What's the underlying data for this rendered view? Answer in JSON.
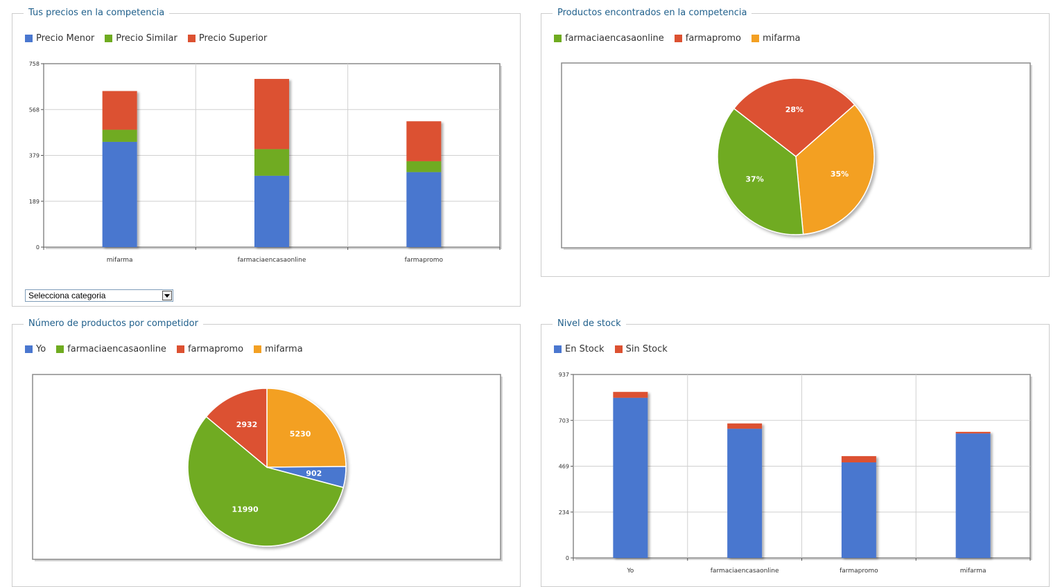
{
  "colors": {
    "blue": "#4a77cf",
    "green": "#6fab20",
    "red": "#dc5131",
    "orange": "#f3a023"
  },
  "panels": {
    "precios": {
      "title": "Tus precios en la competencia",
      "legend": [
        {
          "label": "Precio Menor",
          "color": "#4a77cf"
        },
        {
          "label": "Precio Similar",
          "color": "#6fab20"
        },
        {
          "label": "Precio Superior",
          "color": "#dc5131"
        }
      ],
      "select_value": "Selecciona categoria"
    },
    "encontrados": {
      "title": "Productos encontrados en la competencia",
      "legend": [
        {
          "label": "farmaciaencasaonline",
          "color": "#6fab20"
        },
        {
          "label": "farmapromo",
          "color": "#dc5131"
        },
        {
          "label": "mifarma",
          "color": "#f3a023"
        }
      ]
    },
    "numero": {
      "title": "Número de productos por competidor",
      "legend": [
        {
          "label": "Yo",
          "color": "#4a77cf"
        },
        {
          "label": "farmaciaencasaonline",
          "color": "#6fab20"
        },
        {
          "label": "farmapromo",
          "color": "#dc5131"
        },
        {
          "label": "mifarma",
          "color": "#f3a023"
        }
      ]
    },
    "stock": {
      "title": "Nivel de stock",
      "legend": [
        {
          "label": "En Stock",
          "color": "#4a77cf"
        },
        {
          "label": "Sin Stock",
          "color": "#dc5131"
        }
      ]
    }
  },
  "chart_data": [
    {
      "type": "bar",
      "stacked": true,
      "categories": [
        "mifarma",
        "farmaciaencasaonline",
        "farmapromo"
      ],
      "series": [
        {
          "name": "Precio Menor",
          "color": "#4a77cf",
          "values": [
            435,
            295,
            310
          ]
        },
        {
          "name": "Precio Similar",
          "color": "#6fab20",
          "values": [
            50,
            110,
            45
          ]
        },
        {
          "name": "Precio Superior",
          "color": "#dc5131",
          "values": [
            160,
            290,
            165
          ]
        }
      ],
      "yticks": [
        "0",
        "189",
        "379",
        "568",
        "758"
      ],
      "ylim": [
        0,
        758
      ],
      "grid": true,
      "legend_position": "top-left"
    },
    {
      "type": "pie",
      "slices": [
        {
          "name": "mifarma",
          "value": 35,
          "label": "35%",
          "color": "#f3a023"
        },
        {
          "name": "farmaciaencasaonline",
          "value": 37,
          "label": "37%",
          "color": "#6fab20"
        },
        {
          "name": "farmapromo",
          "value": 28,
          "label": "28%",
          "color": "#dc5131"
        }
      ],
      "legend_position": "top-left"
    },
    {
      "type": "pie",
      "slices": [
        {
          "name": "mifarma",
          "value": 5230,
          "label": "5230",
          "color": "#f3a023"
        },
        {
          "name": "Yo",
          "value": 902,
          "label": "902",
          "color": "#4a77cf"
        },
        {
          "name": "farmaciaencasaonline",
          "value": 11990,
          "label": "11990",
          "color": "#6fab20"
        },
        {
          "name": "farmapromo",
          "value": 2932,
          "label": "2932",
          "color": "#dc5131"
        }
      ],
      "legend_position": "top-left"
    },
    {
      "type": "bar",
      "stacked": true,
      "categories": [
        "Yo",
        "farmaciaencasaonline",
        "farmapromo",
        "mifarma"
      ],
      "series": [
        {
          "name": "En Stock",
          "color": "#4a77cf",
          "values": [
            818,
            660,
            488,
            636
          ]
        },
        {
          "name": "Sin Stock",
          "color": "#dc5131",
          "values": [
            30,
            27,
            32,
            8
          ]
        }
      ],
      "yticks": [
        "0",
        "234",
        "469",
        "703",
        "937"
      ],
      "ylim": [
        0,
        937
      ],
      "grid": true,
      "legend_position": "top-left"
    }
  ]
}
